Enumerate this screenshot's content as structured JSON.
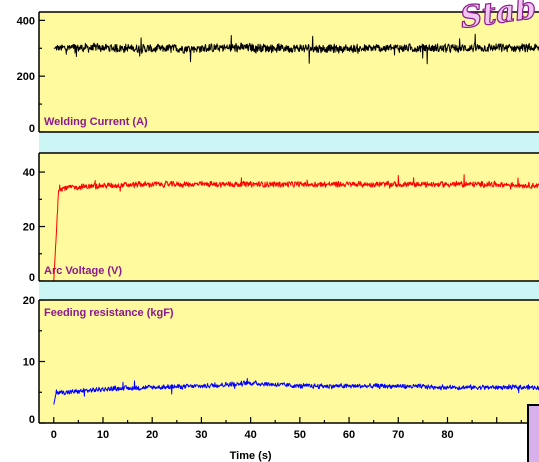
{
  "watermark_text": "Stab",
  "chart_data": [
    {
      "type": "line",
      "panel_label": "Welding Current (A)",
      "ylim": [
        0,
        430
      ],
      "yticks": [
        0,
        200,
        400
      ],
      "xlim": [
        -3,
        99
      ],
      "color": "#000000",
      "series": [
        {
          "x": [
            0,
            10,
            20,
            30,
            40,
            50,
            60,
            70,
            80,
            90,
            99
          ],
          "values": [
            300,
            302,
            298,
            300,
            303,
            300,
            298,
            301,
            300,
            302,
            300
          ],
          "noise": 18
        }
      ]
    },
    {
      "type": "line",
      "panel_label": "Arc Voltage (V)",
      "ylim": [
        0,
        47
      ],
      "yticks": [
        0,
        20,
        40
      ],
      "xlim": [
        -3,
        99
      ],
      "color": "#ff0000",
      "series": [
        {
          "x": [
            0,
            1,
            5,
            10,
            20,
            30,
            40,
            50,
            60,
            70,
            80,
            90,
            99
          ],
          "values": [
            0,
            34,
            34.5,
            35,
            35.5,
            35.5,
            35.5,
            35.5,
            35.5,
            35.5,
            35.5,
            35.5,
            35
          ],
          "noise": 1.2
        }
      ]
    },
    {
      "type": "line",
      "panel_label": "Feeding resistance (kgF)",
      "ylim": [
        0,
        20
      ],
      "yticks": [
        0,
        10,
        20
      ],
      "xlim": [
        -3,
        99
      ],
      "xticks": [
        0,
        10,
        20,
        30,
        40,
        50,
        60,
        70,
        80
      ],
      "xlabel": "Time (s)",
      "color": "#0000ff",
      "series": [
        {
          "x": [
            0,
            0.5,
            3,
            10,
            20,
            30,
            40,
            50,
            60,
            70,
            80,
            90,
            99
          ],
          "values": [
            3,
            5,
            5,
            5.5,
            5.8,
            6,
            6.5,
            6,
            6,
            6,
            5.8,
            5.8,
            5.8
          ],
          "noise": 0.45
        }
      ]
    }
  ]
}
